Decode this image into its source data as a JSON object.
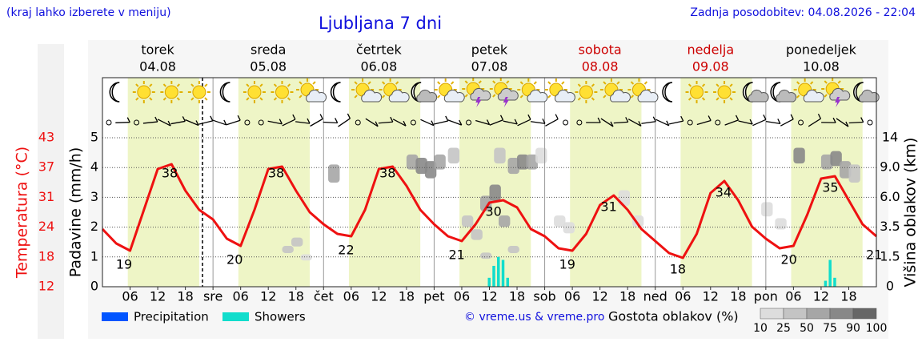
{
  "header": {
    "note": "(kraj lahko izberete v meniju)",
    "updated": "Zadnja posodobitev: 04.08.2026 - 22:04"
  },
  "chart_data": {
    "type": "weather",
    "title": "Ljubljana 7 dni",
    "days": [
      {
        "name": "torek",
        "date": "04.08",
        "color": "#000000"
      },
      {
        "name": "sreda",
        "date": "05.08",
        "color": "#000000"
      },
      {
        "name": "četrtek",
        "date": "06.08",
        "color": "#000000"
      },
      {
        "name": "petek",
        "date": "07.08",
        "color": "#000000"
      },
      {
        "name": "sobota",
        "date": "08.08",
        "color": "#cc0000"
      },
      {
        "name": "nedelja",
        "date": "09.08",
        "color": "#cc0000"
      },
      {
        "name": "ponedeljek",
        "date": "10.08",
        "color": "#000000"
      }
    ],
    "xlim": [
      0,
      168
    ],
    "xticks": [
      {
        "value": 6,
        "label": "06"
      },
      12,
      18,
      {
        "value": 24,
        "label": "sre"
      },
      {
        "value": 30,
        "label": "06"
      },
      {
        "value": 36,
        "label": "12"
      },
      {
        "value": 42,
        "label": "18"
      },
      {
        "value": 48,
        "label": "čet"
      },
      {
        "value": 54,
        "label": "06"
      },
      {
        "value": 60,
        "label": "12"
      },
      {
        "value": 66,
        "label": "18"
      },
      {
        "value": 72,
        "label": "pet"
      },
      {
        "value": 78,
        "label": "06"
      },
      {
        "value": 84,
        "label": "12"
      },
      {
        "value": 90,
        "label": "18"
      },
      {
        "value": 96,
        "label": "sob"
      },
      {
        "value": 102,
        "label": "06"
      },
      {
        "value": 108,
        "label": "12"
      },
      {
        "value": 114,
        "label": "18"
      },
      {
        "value": 120,
        "label": "ned"
      },
      {
        "value": 126,
        "label": "06"
      },
      {
        "value": 132,
        "label": "12"
      },
      {
        "value": 138,
        "label": "18"
      },
      {
        "value": 144,
        "label": "pon"
      },
      {
        "value": 150,
        "label": "06"
      },
      {
        "value": 156,
        "label": "12"
      },
      {
        "value": 162,
        "label": "18"
      }
    ],
    "ylabel": "Padavine (mm/h)",
    "ylim": [
      0,
      5
    ],
    "yticks": [
      0,
      1,
      2,
      3,
      4,
      5
    ],
    "temp_axis": {
      "label": "Temperatura (°C)",
      "color": "#ee1111",
      "lim": [
        12,
        43
      ],
      "ticks": [
        12,
        {
          "value": 18.2,
          "label": "18"
        },
        {
          "value": 24.4,
          "label": "24"
        },
        {
          "value": 30.6,
          "label": "31"
        },
        {
          "value": 36.8,
          "label": "37"
        },
        43
      ]
    },
    "y2label": "Višina oblakov (km)",
    "y2lim": [
      0,
      14
    ],
    "y2ticks": [
      0,
      1.5,
      3.5,
      {
        "value": 6,
        "label": "6.0"
      },
      {
        "value": 9,
        "label": "9.0"
      },
      14
    ],
    "grid": true,
    "series": [
      {
        "type": "line",
        "axis": "temp",
        "color": "#ee1111",
        "x": [
          0,
          3,
          6,
          9,
          12,
          15,
          18,
          21,
          24,
          27,
          30,
          33,
          36,
          39,
          42,
          45,
          48,
          51,
          54,
          57,
          60,
          63,
          66,
          69,
          72,
          75,
          78,
          81,
          84,
          87,
          90,
          93,
          96,
          99,
          102,
          105,
          108,
          111,
          114,
          117,
          120,
          123,
          126,
          129,
          132,
          135,
          138,
          141,
          144,
          147,
          150,
          153,
          156,
          159,
          162,
          165,
          168
        ],
        "values": [
          24,
          21,
          19.5,
          28,
          36.5,
          37.5,
          32,
          28,
          26,
          22,
          20.5,
          28,
          36.5,
          37,
          32,
          27.5,
          25,
          23,
          22.5,
          28,
          36.5,
          37,
          33,
          28,
          25,
          22.5,
          21.5,
          25,
          29.5,
          30,
          28.5,
          24,
          22.5,
          20,
          19.5,
          23,
          29,
          31,
          28,
          24,
          21.5,
          19,
          18,
          23,
          31.5,
          34,
          30,
          24.5,
          22,
          20,
          20.5,
          27,
          34.5,
          35,
          30,
          25,
          22.5
        ]
      },
      {
        "type": "bar",
        "name": "Precipitation",
        "color": "#0055ff",
        "x": [],
        "values": []
      },
      {
        "type": "bar",
        "name": "Showers",
        "color": "#11ddcc",
        "x": [
          84,
          85,
          86,
          87,
          88,
          157,
          158,
          159
        ],
        "values": [
          0.3,
          0.7,
          1.0,
          0.9,
          0.3,
          0.2,
          0.9,
          0.3
        ]
      }
    ],
    "temp_labels": {
      "x": [
        4.7,
        14.6,
        28.7,
        37.7,
        52.9,
        61.9,
        76.9,
        84.9,
        100.9,
        109.9,
        124.9,
        134.8,
        149,
        158,
        167.5
      ],
      "values": [
        19,
        38,
        20,
        38,
        22,
        38,
        21,
        30,
        19,
        31,
        18,
        34,
        20,
        35,
        21
      ]
    },
    "clouds": {
      "label": "Gostota oblakov (%)",
      "levels": [
        10,
        25,
        50,
        75,
        90,
        100
      ],
      "colors": [
        "#dddddd",
        "#c4c4c4",
        "#a6a6a6",
        "#888888",
        "#666666",
        "#555555"
      ],
      "cells": {
        "x": [
          39,
          41,
          43,
          49,
          66,
          68,
          70,
          72,
          75,
          78,
          80,
          82,
          84,
          86,
          88,
          82,
          85,
          88,
          90,
          92,
          94,
          98,
          100,
          112,
          115,
          143,
          146,
          150,
          156,
          158,
          160,
          162
        ],
        "km": [
          2.0,
          2.5,
          1.5,
          8.5,
          10,
          9.5,
          9,
          10,
          11,
          4,
          3,
          5.5,
          6.5,
          4,
          2,
          1.6,
          11,
          9.5,
          10,
          10,
          11,
          4,
          3.5,
          6,
          4,
          5,
          3.8,
          11,
          10,
          10.5,
          9,
          8.5
        ],
        "density": [
          50,
          50,
          25,
          75,
          75,
          90,
          90,
          75,
          50,
          50,
          50,
          75,
          90,
          75,
          50,
          50,
          50,
          75,
          90,
          75,
          25,
          25,
          25,
          25,
          25,
          25,
          25,
          90,
          75,
          90,
          75,
          50
        ]
      }
    },
    "credit": "© vreme.us & vreme.pro"
  }
}
